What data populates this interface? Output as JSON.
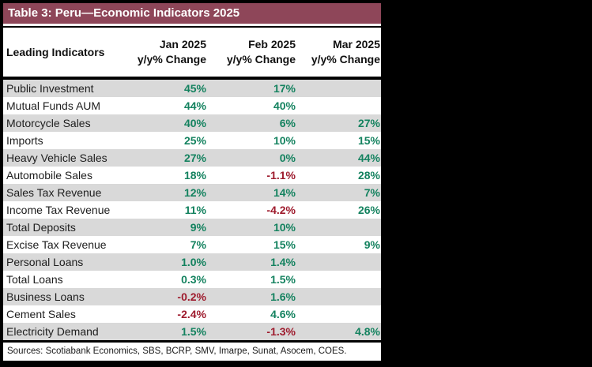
{
  "chart_data": {
    "type": "table",
    "title": "Table 3: Peru—Economic Indicators 2025",
    "header": {
      "indicator_label": "Leading Indicators",
      "months": [
        "Jan 2025",
        "Feb 2025",
        "Mar 2025"
      ],
      "sub_label": "y/y% Change"
    },
    "rows": [
      {
        "indicator": "Public Investment",
        "values": [
          "45%",
          "17%",
          ""
        ]
      },
      {
        "indicator": "Mutual Funds AUM",
        "values": [
          "44%",
          "40%",
          ""
        ]
      },
      {
        "indicator": "Motorcycle Sales",
        "values": [
          "40%",
          "6%",
          "27%"
        ]
      },
      {
        "indicator": "Imports",
        "values": [
          "25%",
          "10%",
          "15%"
        ]
      },
      {
        "indicator": "Heavy Vehicle Sales",
        "values": [
          "27%",
          "0%",
          "44%"
        ]
      },
      {
        "indicator": "Automobile Sales",
        "values": [
          "18%",
          "-1.1%",
          "28%"
        ]
      },
      {
        "indicator": "Sales Tax Revenue",
        "values": [
          "12%",
          "14%",
          "7%"
        ]
      },
      {
        "indicator": "Income Tax Revenue",
        "values": [
          "11%",
          "-4.2%",
          "26%"
        ]
      },
      {
        "indicator": "Total Deposits",
        "values": [
          "9%",
          "10%",
          ""
        ]
      },
      {
        "indicator": "Excise Tax Revenue",
        "values": [
          "7%",
          "15%",
          "9%"
        ]
      },
      {
        "indicator": "Personal Loans",
        "values": [
          "1.0%",
          "1.4%",
          ""
        ]
      },
      {
        "indicator": "Total Loans",
        "values": [
          "0.3%",
          "1.5%",
          ""
        ]
      },
      {
        "indicator": "Business Loans",
        "values": [
          "-0.2%",
          "1.6%",
          ""
        ]
      },
      {
        "indicator": "Cement Sales",
        "values": [
          "-2.4%",
          "4.6%",
          ""
        ]
      },
      {
        "indicator": "Electricity Demand",
        "values": [
          "1.5%",
          "-1.3%",
          "4.8%"
        ]
      }
    ],
    "footer": "Sources: Scotiabank Economics, SBS, BCRP, SMV, Imarpe, Sunat, Asocem, COES.",
    "colors": {
      "positive": "#14825F",
      "negative": "#9E1B2D",
      "title_bar": "#8E4659",
      "row_stripe": "#D9D9D9"
    }
  }
}
